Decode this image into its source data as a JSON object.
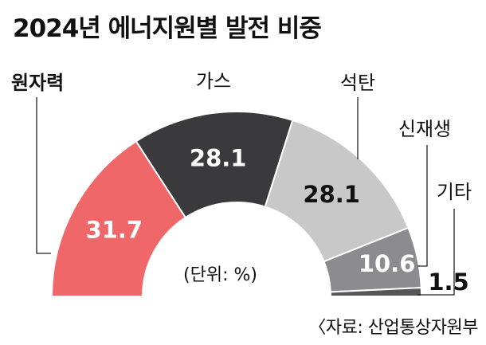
{
  "title": "2024년 에너지원별 발전 비중",
  "unit_label": "(단위: %)",
  "source": "〈자료: 산업통상자원부",
  "chart_data": {
    "type": "pie",
    "subtype": "half-donut",
    "title": "2024년 에너지원별 발전 비중",
    "categories": [
      "원자력",
      "가스",
      "석탄",
      "신재생",
      "기타"
    ],
    "values": [
      31.7,
      28.1,
      28.1,
      10.6,
      1.5
    ],
    "value_labels": [
      "31.7",
      "28.1",
      "28.1",
      "10.6",
      "1.5"
    ],
    "colors": [
      "#f0676a",
      "#3a3a3c",
      "#c8c8c8",
      "#8c8c90",
      "#555557"
    ]
  }
}
